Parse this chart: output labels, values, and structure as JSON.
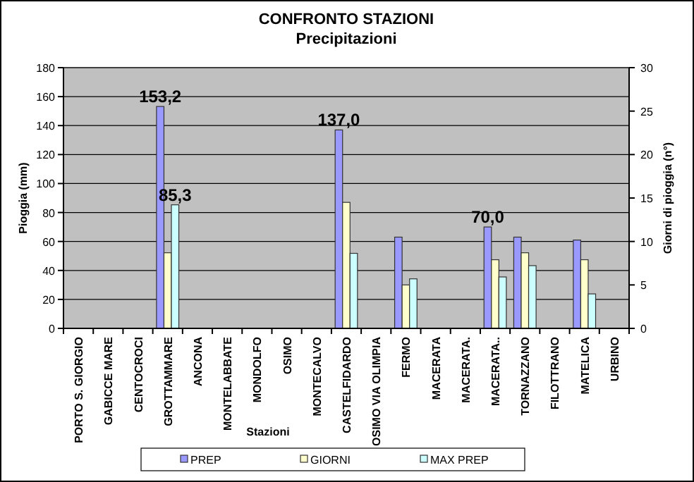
{
  "chart_data": {
    "type": "bar",
    "title": "CONFRONTO STAZIONI",
    "subtitle": "Precipitazioni",
    "xlabel": "Stazioni",
    "ylabel": "Pioggia (mm)",
    "y2label": "Giorni di pioggia (n°)",
    "categories": [
      "PORTO S. GIORGIO",
      "GABICCE MARE",
      "CENTOCROCI",
      "GROTTAMMARE",
      "ANCONA",
      "MONTELABBATE",
      "MONDOLFO",
      "OSIMO",
      "MONTECALVO",
      "CASTELFIDARDO",
      "OSIMO VIA OLIMPIA",
      "FERMO",
      "MACERATA",
      "MACERATA.",
      "MACERATA..",
      "TORNAZZANO",
      "FILOTTRANO",
      "MATELICA",
      "URBINO"
    ],
    "series": [
      {
        "name": "PREP",
        "color": "#9999ff",
        "values": [
          null,
          null,
          null,
          153.2,
          null,
          null,
          null,
          null,
          null,
          137.0,
          null,
          63,
          null,
          null,
          70.0,
          63,
          null,
          61,
          null
        ],
        "value_labels": [
          null,
          null,
          null,
          "153,2",
          null,
          null,
          null,
          null,
          null,
          "137,0",
          null,
          null,
          null,
          null,
          "70,0",
          null,
          null,
          null,
          null
        ]
      },
      {
        "name": "GIORNI",
        "color": "#ffffcc",
        "axis": "y2",
        "values": [
          null,
          null,
          null,
          8.7,
          null,
          null,
          null,
          null,
          null,
          14.5,
          null,
          5,
          null,
          null,
          7.9,
          8.7,
          null,
          7.9,
          null
        ]
      },
      {
        "name": "MAX PREP",
        "color": "#ccffff",
        "values": [
          null,
          null,
          null,
          85.3,
          null,
          null,
          null,
          null,
          null,
          51.8,
          null,
          34.2,
          null,
          null,
          35.5,
          43.3,
          null,
          23.8,
          null
        ],
        "value_labels": [
          null,
          null,
          null,
          "85,3",
          null,
          null,
          null,
          null,
          null,
          null,
          null,
          null,
          null,
          null,
          null,
          null,
          null,
          null,
          null
        ]
      }
    ],
    "ylim": [
      0,
      180
    ],
    "yticks": [
      0,
      20,
      40,
      60,
      80,
      100,
      120,
      140,
      160,
      180
    ],
    "y2lim": [
      0,
      30
    ],
    "y2ticks": [
      0,
      5,
      10,
      15,
      20,
      25,
      30
    ],
    "grid": "y",
    "legend": "bottom"
  }
}
